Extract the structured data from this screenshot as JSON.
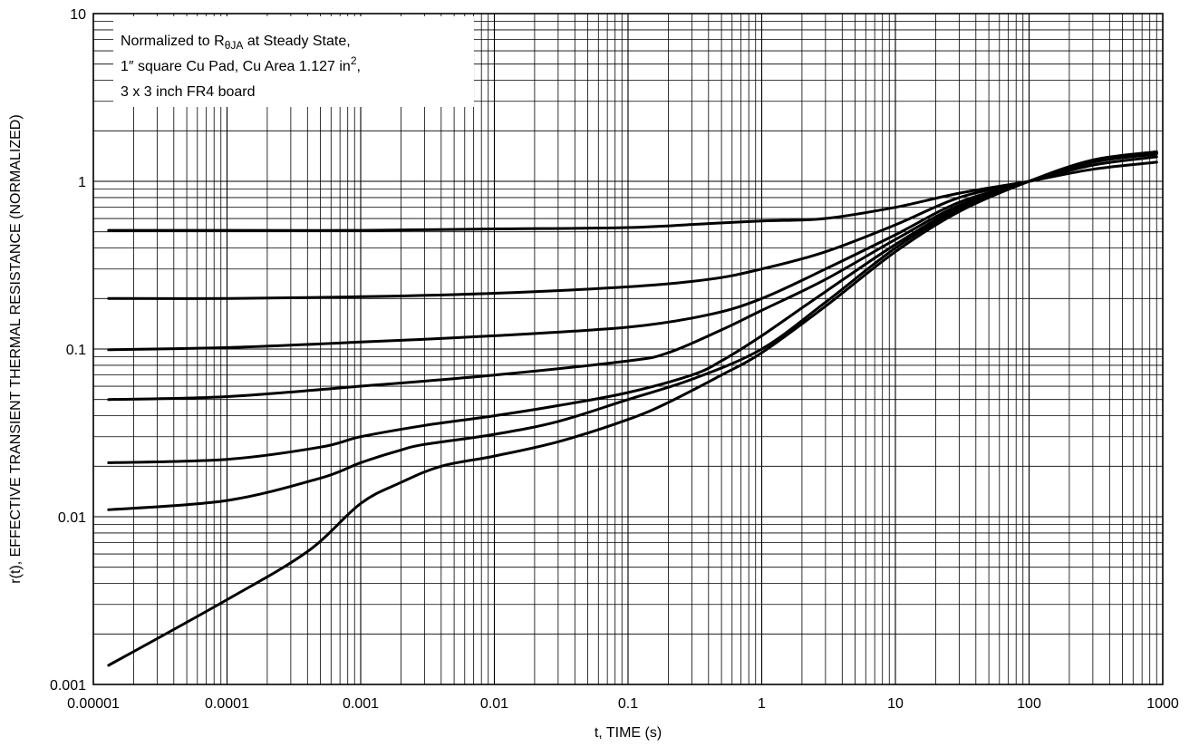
{
  "chart_data": {
    "type": "line",
    "title": "",
    "xlabel": "t, TIME (s)",
    "ylabel": "r(t), EFFECTIVE TRANSIENT THERMAL RESISTANCE (NORMALIZED)",
    "x_scale": "log",
    "y_scale": "log",
    "xlim": [
      1e-05,
      1000
    ],
    "ylim": [
      0.001,
      10
    ],
    "grid": true,
    "legend": "none",
    "x_ticks": [
      "0.00001",
      "0.0001",
      "0.001",
      "0.01",
      "0.1",
      "1",
      "10",
      "100",
      "1000"
    ],
    "y_ticks": [
      "0.001",
      "0.01",
      "0.1",
      "1",
      "10"
    ],
    "annotation": {
      "line1_prefix": "Normalized to R",
      "line1_sub": "θJA",
      "line1_suffix": " at Steady State,",
      "line2_prefix": "1″ square Cu Pad, Cu Area 1.127 in",
      "line2_sup": "2",
      "line2_suffix": ",",
      "line3": "3 x 3 inch FR4 board"
    },
    "series": [
      {
        "x": [
          1.3e-05,
          0.0001,
          0.001,
          0.01,
          0.1,
          0.4,
          1,
          3,
          10,
          30,
          100,
          300,
          900
        ],
        "y": [
          0.51,
          0.51,
          0.51,
          0.52,
          0.53,
          0.56,
          0.58,
          0.6,
          0.7,
          0.85,
          1.0,
          1.18,
          1.3
        ]
      },
      {
        "x": [
          1.3e-05,
          0.0001,
          0.001,
          0.01,
          0.1,
          0.4,
          1,
          3,
          10,
          30,
          100,
          300,
          900
        ],
        "y": [
          0.2,
          0.2,
          0.205,
          0.215,
          0.235,
          0.26,
          0.3,
          0.38,
          0.55,
          0.8,
          1.0,
          1.25,
          1.4
        ]
      },
      {
        "x": [
          1.3e-05,
          0.0001,
          0.001,
          0.01,
          0.1,
          0.4,
          1,
          3,
          10,
          30,
          100,
          300,
          900
        ],
        "y": [
          0.099,
          0.102,
          0.11,
          0.12,
          0.135,
          0.16,
          0.2,
          0.3,
          0.48,
          0.75,
          1.0,
          1.3,
          1.45
        ]
      },
      {
        "x": [
          1.3e-05,
          0.0001,
          0.001,
          0.01,
          0.1,
          0.2,
          0.5,
          1,
          3,
          10,
          30,
          100,
          300,
          900
        ],
        "y": [
          0.05,
          0.052,
          0.06,
          0.07,
          0.085,
          0.095,
          0.13,
          0.17,
          0.26,
          0.45,
          0.72,
          1.0,
          1.3,
          1.47
        ]
      },
      {
        "x": [
          1.3e-05,
          0.0001,
          0.0005,
          0.001,
          0.003,
          0.01,
          0.03,
          0.1,
          0.3,
          0.5,
          1,
          3,
          10,
          30,
          100,
          300,
          900
        ],
        "y": [
          0.021,
          0.022,
          0.026,
          0.03,
          0.035,
          0.04,
          0.046,
          0.055,
          0.07,
          0.085,
          0.12,
          0.22,
          0.42,
          0.7,
          1.0,
          1.32,
          1.48
        ]
      },
      {
        "x": [
          1.3e-05,
          0.0001,
          0.0005,
          0.001,
          0.002,
          0.003,
          0.01,
          0.03,
          0.1,
          0.3,
          1,
          3,
          10,
          30,
          100,
          300,
          900
        ],
        "y": [
          0.011,
          0.0125,
          0.017,
          0.021,
          0.025,
          0.027,
          0.031,
          0.037,
          0.05,
          0.066,
          0.1,
          0.19,
          0.4,
          0.68,
          1.0,
          1.33,
          1.49
        ]
      },
      {
        "x": [
          1.3e-05,
          0.0001,
          0.0004,
          0.001,
          0.002,
          0.004,
          0.01,
          0.03,
          0.1,
          0.2,
          0.5,
          1,
          3,
          10,
          30,
          100,
          300,
          900
        ],
        "y": [
          0.0013,
          0.0032,
          0.0062,
          0.012,
          0.016,
          0.02,
          0.023,
          0.028,
          0.038,
          0.048,
          0.07,
          0.095,
          0.18,
          0.38,
          0.66,
          1.0,
          1.34,
          1.5
        ]
      }
    ]
  }
}
